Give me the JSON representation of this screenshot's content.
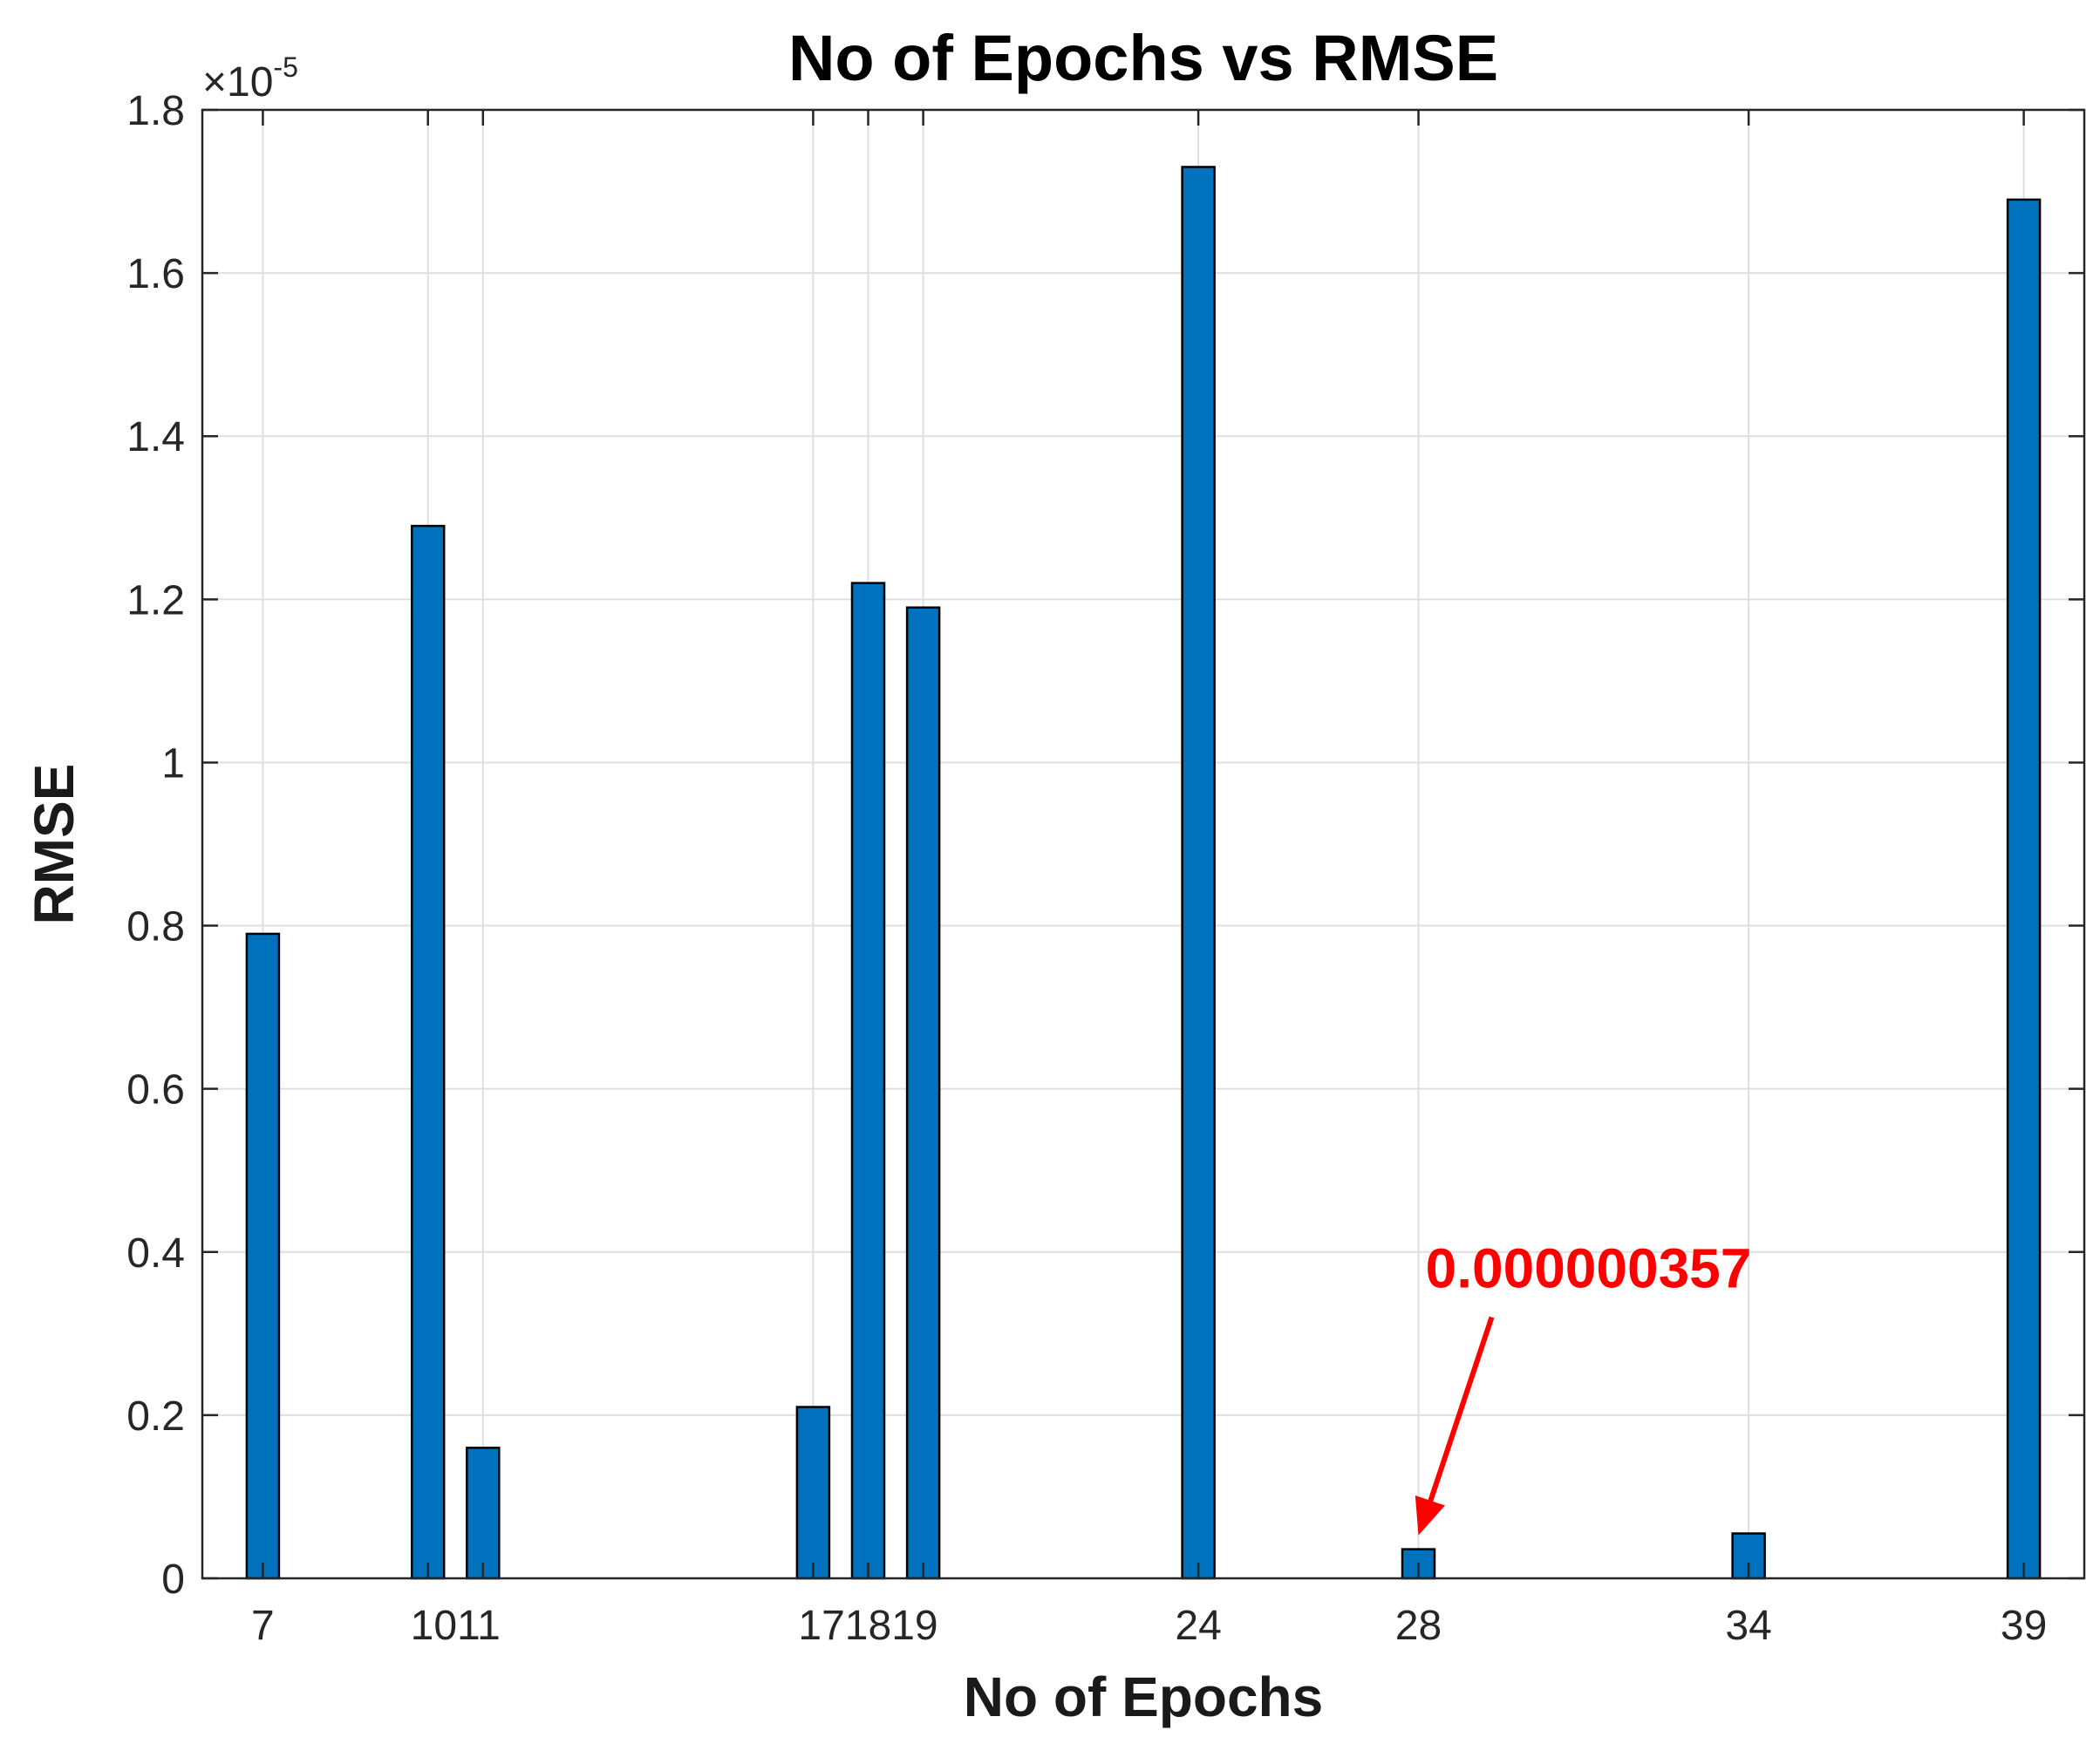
{
  "chart_data": {
    "type": "bar",
    "title": "No of Epochs vs RMSE",
    "xlabel": "No of Epochs",
    "ylabel": "RMSE",
    "y_exponent_label": "×10",
    "y_exponent_power": "-5",
    "categories": [
      "7",
      "10",
      "11",
      "17",
      "18",
      "19",
      "24",
      "28",
      "34",
      "39"
    ],
    "x": [
      7,
      10,
      11,
      17,
      18,
      19,
      24,
      28,
      34,
      39
    ],
    "x_tick_labels": [
      "7",
      "1011",
      "171819",
      "24",
      "28",
      "34",
      "39"
    ],
    "values": [
      0.79,
      1.29,
      0.16,
      0.21,
      1.22,
      1.19,
      1.73,
      0.0357,
      0.055,
      1.69
    ],
    "y_scale_multiplier": 1e-05,
    "ylim": [
      0,
      1.8
    ],
    "xlim": [
      5.9,
      40.1
    ],
    "y_ticks": [
      0,
      0.2,
      0.4,
      0.6,
      0.8,
      1,
      1.2,
      1.4,
      1.6,
      1.8
    ],
    "y_tick_labels": [
      "0",
      "0.2",
      "0.4",
      "0.6",
      "0.8",
      "1",
      "1.2",
      "1.4",
      "1.6",
      "1.8"
    ],
    "grid": true,
    "bar_color": "#0072bd",
    "annotation": {
      "text": "0.000000357",
      "target_x": 28,
      "color": "#ff0000"
    }
  }
}
